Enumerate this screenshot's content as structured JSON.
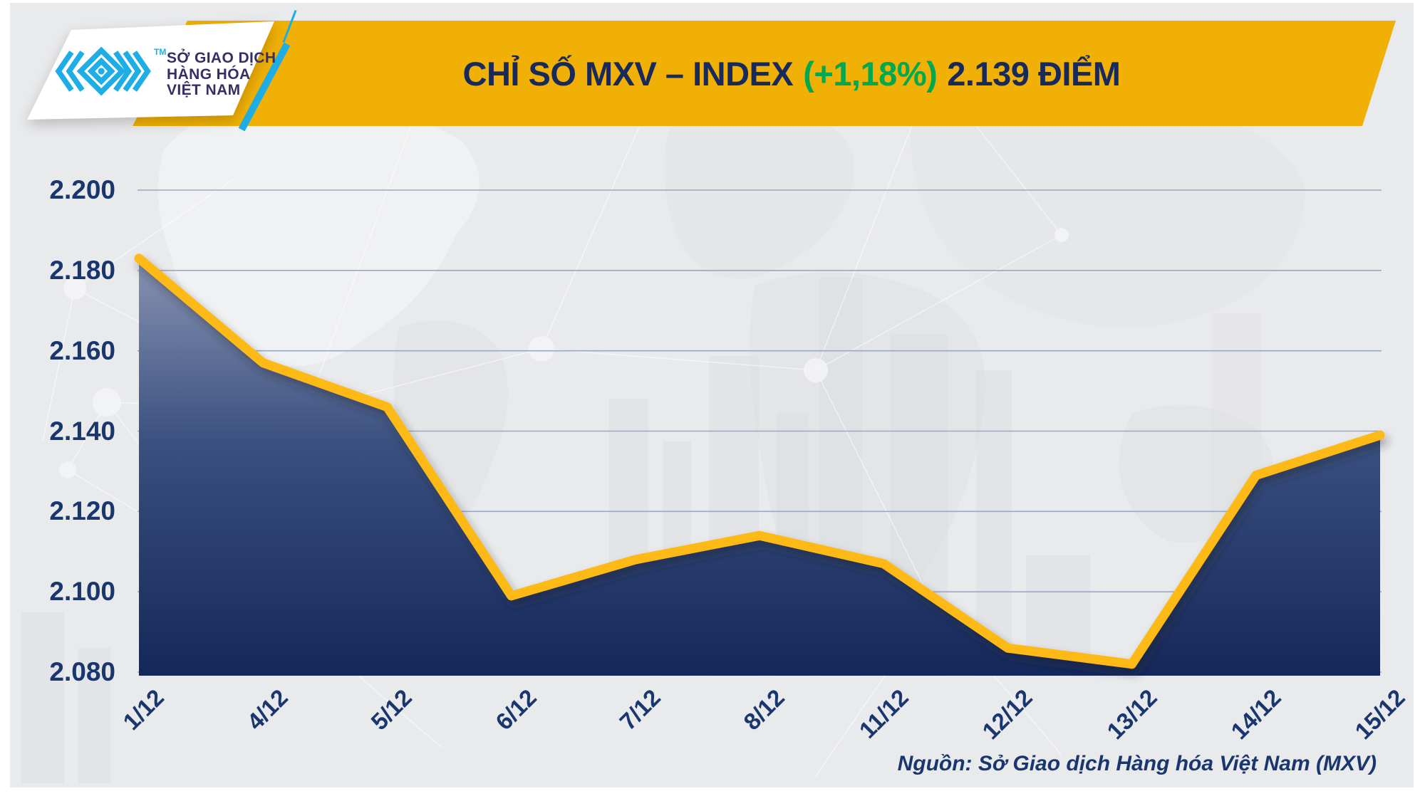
{
  "header": {
    "logo": {
      "lines": [
        "SỞ GIAO DỊCH",
        "HÀNG HÓA",
        "VIỆT NAM"
      ],
      "tm": "TM"
    },
    "title": {
      "prefix": "CHỈ SỐ MXV – INDEX",
      "change": "(+1,18%)",
      "suffix": "2.139 ĐIỂM"
    }
  },
  "footer": {
    "source": "Nguồn: Sở Giao dịch Hàng hóa Việt Nam (MXV)"
  },
  "colors": {
    "banner": "#F0B005",
    "title_navy": "#182A5C",
    "change_green": "#00A84F",
    "axis_navy": "#1A366E",
    "line_gold": "#FDB913",
    "logo_cyan": "#1FADE6",
    "logo_text": "#352F66",
    "grid": "#9CA7C7",
    "background": "#E9EAEC"
  },
  "chart_data": {
    "type": "area",
    "title": "CHỈ SỐ MXV – INDEX (+1,18%) 2.139 ĐIỂM",
    "x_labels": [
      "1/12",
      "4/12",
      "5/12",
      "6/12",
      "7/12",
      "8/12",
      "11/12",
      "12/12",
      "13/12",
      "14/12",
      "15/12"
    ],
    "values": [
      2.183,
      2.157,
      2.146,
      2.099,
      2.108,
      2.114,
      2.107,
      2.086,
      2.082,
      2.129,
      2.139
    ],
    "ylim": [
      2.08,
      2.2
    ],
    "ytick_values": [
      2.2,
      2.18,
      2.16,
      2.14,
      2.12,
      2.1,
      2.08
    ],
    "ytick_labels": [
      "2.200",
      "2.180",
      "2.160",
      "2.140",
      "2.120",
      "2.100",
      "2.080"
    ],
    "grid": true,
    "legend": "none",
    "line_color": "#FDB913",
    "fill_gradient": [
      "#8A95B3",
      "#3A5080",
      "#14275A"
    ],
    "source": "Nguồn: Sở Giao dịch Hàng hóa Việt Nam (MXV)"
  }
}
